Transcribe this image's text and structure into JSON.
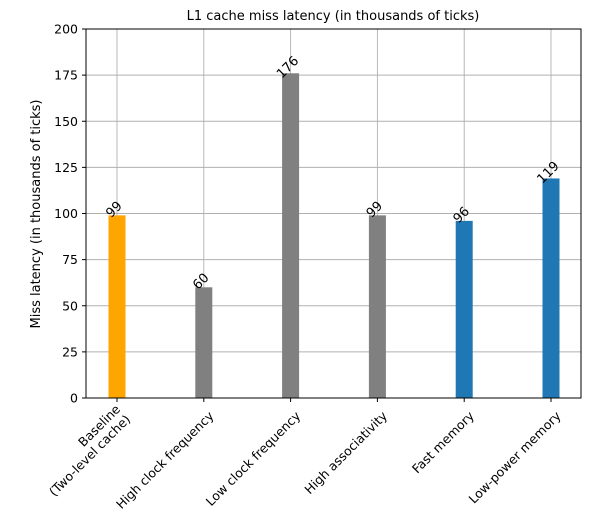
{
  "chart_data": {
    "type": "bar",
    "title": "L1 cache miss latency (in thousands of ticks)",
    "xlabel": "",
    "ylabel": "Miss latency (in thousands of ticks)",
    "ylim": [
      0,
      200
    ],
    "yticks": [
      0,
      25,
      50,
      75,
      100,
      125,
      150,
      175,
      200
    ],
    "grid": true,
    "categories": [
      [
        "Baseline",
        "(Two-level cache)"
      ],
      [
        "High clock frequency"
      ],
      [
        "Low clock frequency"
      ],
      [
        "High associativity"
      ],
      [
        "Fast memory"
      ],
      [
        "Low-power memory"
      ]
    ],
    "values": [
      99,
      60,
      176,
      99,
      96,
      119
    ],
    "value_labels": [
      "99",
      "60",
      "176",
      "99",
      "96",
      "119"
    ],
    "colors": [
      "#FFA500",
      "#808080",
      "#808080",
      "#808080",
      "#1f77b4",
      "#1f77b4"
    ]
  }
}
